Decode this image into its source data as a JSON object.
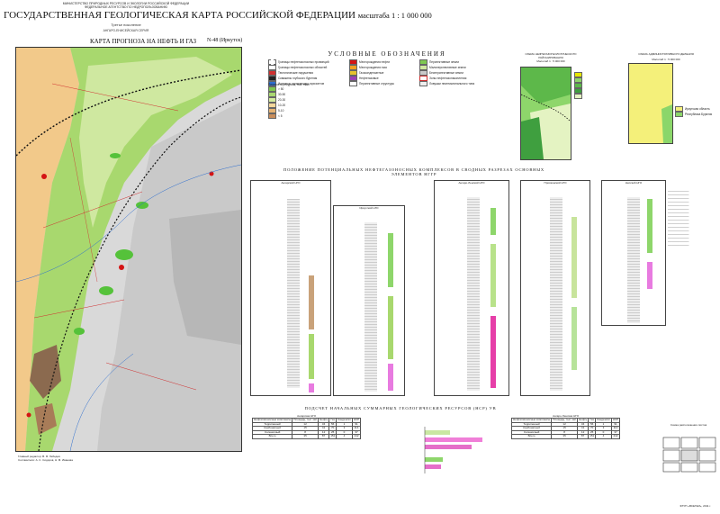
{
  "header": {
    "ministry": "МИНИСТЕРСТВО ПРИРОДНЫХ РЕСУРСОВ И ЭКОЛОГИИ РОССИЙСКОЙ ФЕДЕРАЦИИ",
    "agency": "ФЕДЕРАЛЬНОЕ АГЕНТСТВО ПО НЕДРОПОЛЬЗОВАНИЮ",
    "title": "ГОСУДАРСТВЕННАЯ ГЕОЛОГИЧЕСКАЯ КАРТА РОССИЙСКОЙ ФЕДЕРАЦИИ",
    "scale": "масштаба 1 : 1 000 000",
    "edition": "Третье поколение",
    "series": "АНГАРО-ЕНИСЕЙСКАЯ СЕРИЯ",
    "map_title": "КАРТА ПРОГНОЗА НА НЕФТЬ И ГАЗ",
    "sheet": "N-48 (Иркутск)"
  },
  "legend": {
    "title": "УСЛОВНЫЕ ОБОЗНАЧЕНИЯ",
    "col1_items": [
      "Границы нефтегазоносных провинций",
      "Границы нефтегазоносных областей",
      "Тектонические нарушения",
      "Скважины глубокого бурения",
      "Изогипсы отражающих горизонтов"
    ],
    "col2_items": [
      "Месторождения нефти",
      "Месторождения газа",
      "Газоконденсатные",
      "Нефтегазовые",
      "Перспективные структуры"
    ],
    "col3_items": [
      "Перспективные земли",
      "Малоперспективные земли",
      "Бесперспективные земли",
      "Зоны нефтегазонакопления",
      "Ловушки неантиклинального типа"
    ],
    "density_title": "Плотность ресурсов, тыс. т/км²",
    "density_values": [
      "> 50",
      "30-50",
      "20-30",
      "10-20",
      "5-10",
      "< 5"
    ],
    "colors": [
      "#7ec850",
      "#a9d871",
      "#d5ed9f",
      "#f3d79b",
      "#e7b474",
      "#c98d5b"
    ]
  },
  "insets": {
    "scheme1": "СХЕМА НЕФТЕГАЗОГЕОЛОГИЧЕСКОГО РАЙОНИРОВАНИЯ",
    "scheme1_scale": "Масштаб 1 : 5 000 000",
    "scheme2": "СХЕМА АДМИНИСТРАТИВНОГО ДЕЛЕНИЯ",
    "scheme2_scale": "Масштаб 1 : 5 000 000",
    "scheme2_legend": [
      "Иркутская область",
      "Республика Бурятия"
    ],
    "index": "Схема расположения листов"
  },
  "sections": {
    "title": "ПОЛОЖЕНИЕ ПОТЕНЦИАЛЬНЫХ НЕФТЕГАЗОНОСНЫХ КОМПЛЕКСОВ В СВОДНЫХ РАЗРЕЗАХ ОСНОВНЫХ ЭЛЕМЕНТОВ НГГР",
    "columns": [
      "Ангарский НГО",
      "Иркутский НГО",
      "Ангаро-Ленский НГО",
      "Присаянский НГО",
      "Непский НГО"
    ]
  },
  "resources": {
    "title": "ПОДСЧЕТ НАЧАЛЬНЫХ СУММАРНЫХ ГЕОЛОГИЧЕСКИХ РЕСУРСОВ (НСР) УВ",
    "table1_title": "Ангарская НГО",
    "table2_title": "Ангаро-Ленская НГО",
    "headers": [
      "Нефтегазоносные комплексы",
      "Площадь, тыс. км²",
      "Нефть",
      "Газ",
      "Конденсат",
      "НСР"
    ],
    "rows": [
      [
        "Терригенный",
        "12",
        "34",
        "56",
        "1",
        "91"
      ],
      [
        "Карбонатный",
        "15",
        "41",
        "70",
        "3",
        "114"
      ],
      [
        "Соленосный",
        "8",
        "12",
        "25",
        "0",
        "37"
      ],
      [
        "Всего",
        "35",
        "87",
        "151",
        "4",
        "242"
      ]
    ]
  },
  "footer": {
    "left": [
      "Главный редактор: В. Ф. Лебедев",
      "Составители: А. С. Сидоров, Н. М. Иванова"
    ],
    "right": "ФГУП «ВСЕГЕИ», 2011 г."
  }
}
